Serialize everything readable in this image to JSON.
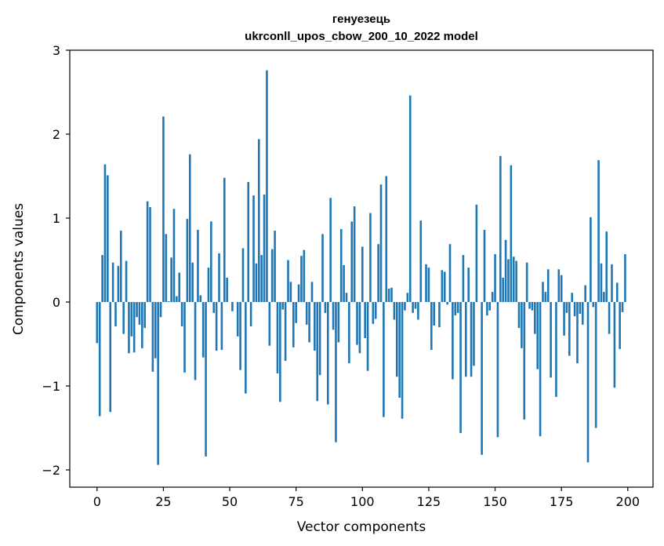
{
  "chart_data": {
    "type": "bar",
    "title": "генуезець",
    "subtitle": "ukrconll_upos_cbow_200_10_2022 model",
    "xlabel": "Vector components",
    "ylabel": "Components values",
    "xlim": [
      -10,
      210
    ],
    "ylim": [
      -2.2,
      3.0
    ],
    "xticks": [
      0,
      25,
      50,
      75,
      100,
      125,
      150,
      175,
      200
    ],
    "xtick_labels": [
      "0",
      "25",
      "50",
      "75",
      "100",
      "125",
      "150",
      "175",
      "200"
    ],
    "yticks": [
      -2,
      -1,
      0,
      1,
      2,
      3
    ],
    "ytick_labels": [
      "−2",
      "−1",
      "0",
      "1",
      "2",
      "3"
    ],
    "grid": false,
    "color": "#1f77b4",
    "series": [
      {
        "values": [
          -0.49,
          -1.36,
          0.56,
          1.64,
          1.51,
          -1.31,
          0.47,
          -0.29,
          0.43,
          0.85,
          -0.38,
          0.49,
          -0.61,
          -0.41,
          -0.6,
          -0.18,
          -0.27,
          -0.55,
          -0.31,
          1.2,
          1.13,
          -0.83,
          -0.67,
          -1.94,
          -0.18,
          2.21,
          0.81,
          0.01,
          0.53,
          1.11,
          0.07,
          0.35,
          -0.29,
          -0.84,
          0.99,
          1.76,
          0.47,
          -0.93,
          0.86,
          0.08,
          -0.66,
          -1.84,
          0.41,
          0.96,
          -0.13,
          -0.58,
          0.58,
          -0.57,
          1.48,
          0.29,
          0.0,
          -0.11,
          0.0,
          -0.41,
          -0.81,
          0.64,
          -1.09,
          1.43,
          -0.29,
          1.27,
          0.46,
          1.94,
          0.56,
          1.28,
          2.76,
          -0.52,
          0.63,
          0.85,
          -0.85,
          -1.19,
          -0.09,
          -0.7,
          0.5,
          0.24,
          -0.54,
          -0.25,
          0.21,
          0.55,
          0.62,
          -0.27,
          -0.48,
          0.24,
          -0.58,
          -1.18,
          -0.87,
          0.81,
          -0.13,
          -1.22,
          1.24,
          -0.33,
          -1.67,
          -0.48,
          0.87,
          0.44,
          0.11,
          -0.73,
          0.96,
          1.14,
          -0.51,
          -0.61,
          0.66,
          -0.43,
          -0.82,
          1.06,
          -0.26,
          -0.2,
          0.69,
          1.4,
          -1.37,
          1.5,
          0.16,
          0.17,
          -0.21,
          -0.89,
          -1.14,
          -1.39,
          -0.1,
          0.11,
          2.46,
          -0.13,
          -0.08,
          -0.21,
          0.97,
          0.0,
          0.45,
          0.41,
          -0.57,
          -0.28,
          0.0,
          -0.3,
          0.38,
          0.36,
          -0.03,
          0.69,
          -0.92,
          -0.16,
          -0.13,
          -1.56,
          0.56,
          -0.89,
          0.41,
          -0.89,
          -0.76,
          1.16,
          0.0,
          -1.82,
          0.86,
          -0.16,
          -0.1,
          0.12,
          0.57,
          -1.61,
          1.74,
          0.29,
          0.74,
          0.51,
          1.63,
          0.54,
          0.49,
          -0.31,
          -0.55,
          -1.4,
          0.47,
          -0.08,
          -0.1,
          -0.38,
          -0.8,
          -1.6,
          0.24,
          0.12,
          0.39,
          -0.9,
          0.0,
          -1.13,
          0.39,
          0.32,
          -0.4,
          -0.13,
          -0.64,
          0.11,
          -0.17,
          -0.73,
          -0.14,
          -0.27,
          0.2,
          -1.91,
          1.01,
          -0.06,
          -1.5,
          1.69,
          0.46,
          0.12,
          0.84,
          -0.38,
          0.45,
          -1.02,
          0.23,
          -0.56,
          -0.12,
          0.57
        ]
      }
    ]
  }
}
